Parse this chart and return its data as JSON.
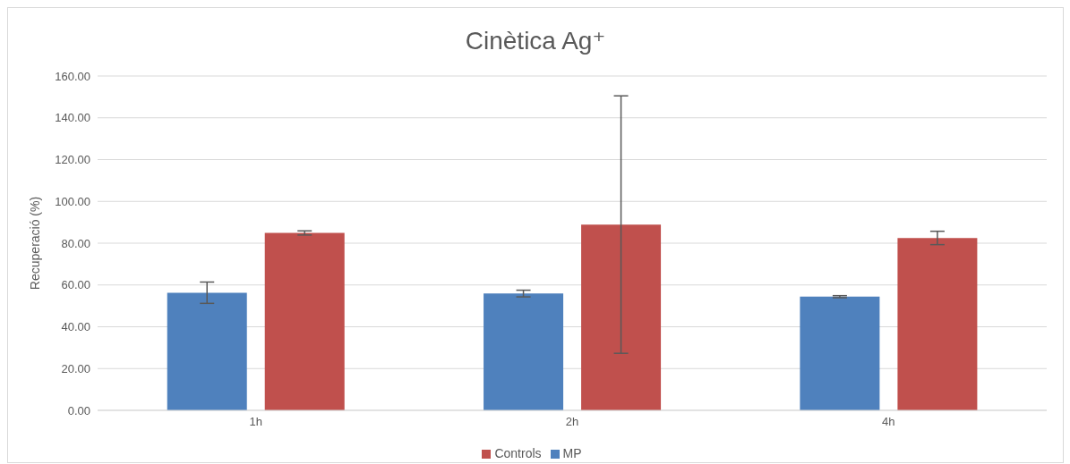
{
  "chart_data": {
    "type": "bar",
    "title": "Cinètica Ag⁺",
    "ylabel": "Recuperació (%)",
    "categories": [
      "1h",
      "2h",
      "4h"
    ],
    "series": [
      {
        "name": "MP",
        "color": "#4f81bd",
        "values": [
          56.3,
          55.9,
          54.4
        ],
        "errors": [
          5.1,
          1.6,
          0.5
        ]
      },
      {
        "name": "Controls",
        "color": "#c0504d",
        "values": [
          84.9,
          88.9,
          82.5
        ],
        "errors": [
          1,
          61.6,
          3.2
        ]
      }
    ],
    "ylim": [
      0,
      160
    ],
    "yticks": [
      {
        "value": 0,
        "label": "0.00"
      },
      {
        "value": 20,
        "label": "20.00"
      },
      {
        "value": 40,
        "label": "40.00"
      },
      {
        "value": 60,
        "label": "60.00"
      },
      {
        "value": 80,
        "label": "80.00"
      },
      {
        "value": 100,
        "label": "100.00"
      },
      {
        "value": 120,
        "label": "120.00"
      },
      {
        "value": 140,
        "label": "140.00"
      },
      {
        "value": 160,
        "label": "160.00"
      }
    ],
    "grid": "y",
    "legend": "bottom"
  }
}
